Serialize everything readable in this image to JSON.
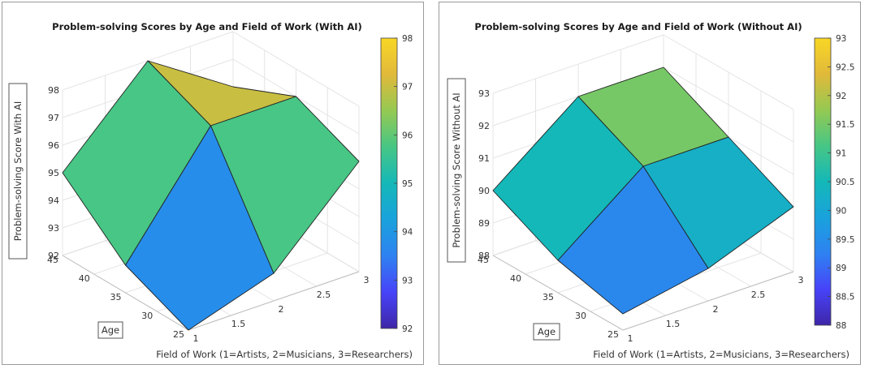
{
  "chart_data": [
    {
      "type": "surface",
      "title": "Problem-solving Scores by Age and Field of Work (With AI)",
      "xlabel": "Field of Work (1=Artists, 2=Musicians, 3=Researchers)",
      "ylabel": "Age",
      "zlabel": "Problem-solving Score With AI",
      "x": [
        1,
        2,
        3
      ],
      "y": [
        25,
        35,
        45
      ],
      "z": [
        [
          92,
          93,
          95
        ],
        [
          93,
          97,
          98
        ],
        [
          96,
          97,
          96
        ]
      ],
      "xlim": [
        1,
        3
      ],
      "ylim": [
        25,
        45
      ],
      "zlim": [
        92,
        98
      ],
      "xticks": [
        "1",
        "1.5",
        "2",
        "2.5",
        "3"
      ],
      "yticks": [
        "25",
        "30",
        "35",
        "40",
        "45"
      ],
      "zticks": [
        "92",
        "93",
        "94",
        "95",
        "96",
        "97",
        "98"
      ],
      "colorbar": {
        "range": [
          92,
          98
        ],
        "ticks": [
          "92",
          "93",
          "94",
          "95",
          "96",
          "97",
          "98"
        ]
      },
      "grid": true
    },
    {
      "type": "surface",
      "title": "Problem-solving Scores by Age and Field of Work (Without AI)",
      "xlabel": "Field of Work (1=Artists, 2=Musicians, 3=Researchers)",
      "ylabel": "Age",
      "zlabel": "Problem-solving Score Without AI",
      "x": [
        1,
        2,
        3
      ],
      "y": [
        25,
        35,
        45
      ],
      "z": [
        [
          88.5,
          89,
          90
        ],
        [
          89,
          91,
          92
        ],
        [
          90,
          91,
          92
        ]
      ],
      "xlim": [
        1,
        3
      ],
      "ylim": [
        25,
        45
      ],
      "zlim": [
        88,
        93
      ],
      "xticks": [
        "1",
        "1.5",
        "2",
        "2.5",
        "3"
      ],
      "yticks": [
        "25",
        "30",
        "35",
        "40",
        "45"
      ],
      "zticks": [
        "88",
        "89",
        "90",
        "91",
        "92",
        "93"
      ],
      "colorbar": {
        "range": [
          88,
          93
        ],
        "ticks": [
          "88",
          "88.5",
          "89",
          "89.5",
          "90",
          "90.5",
          "91",
          "91.5",
          "92",
          "92.5",
          "93"
        ]
      },
      "grid": true
    }
  ],
  "colormap": [
    "#3e26a8",
    "#4743f9",
    "#2e82f1",
    "#19a2dc",
    "#14b8b8",
    "#47c685",
    "#95c952",
    "#e1b93a",
    "#f9d625"
  ]
}
